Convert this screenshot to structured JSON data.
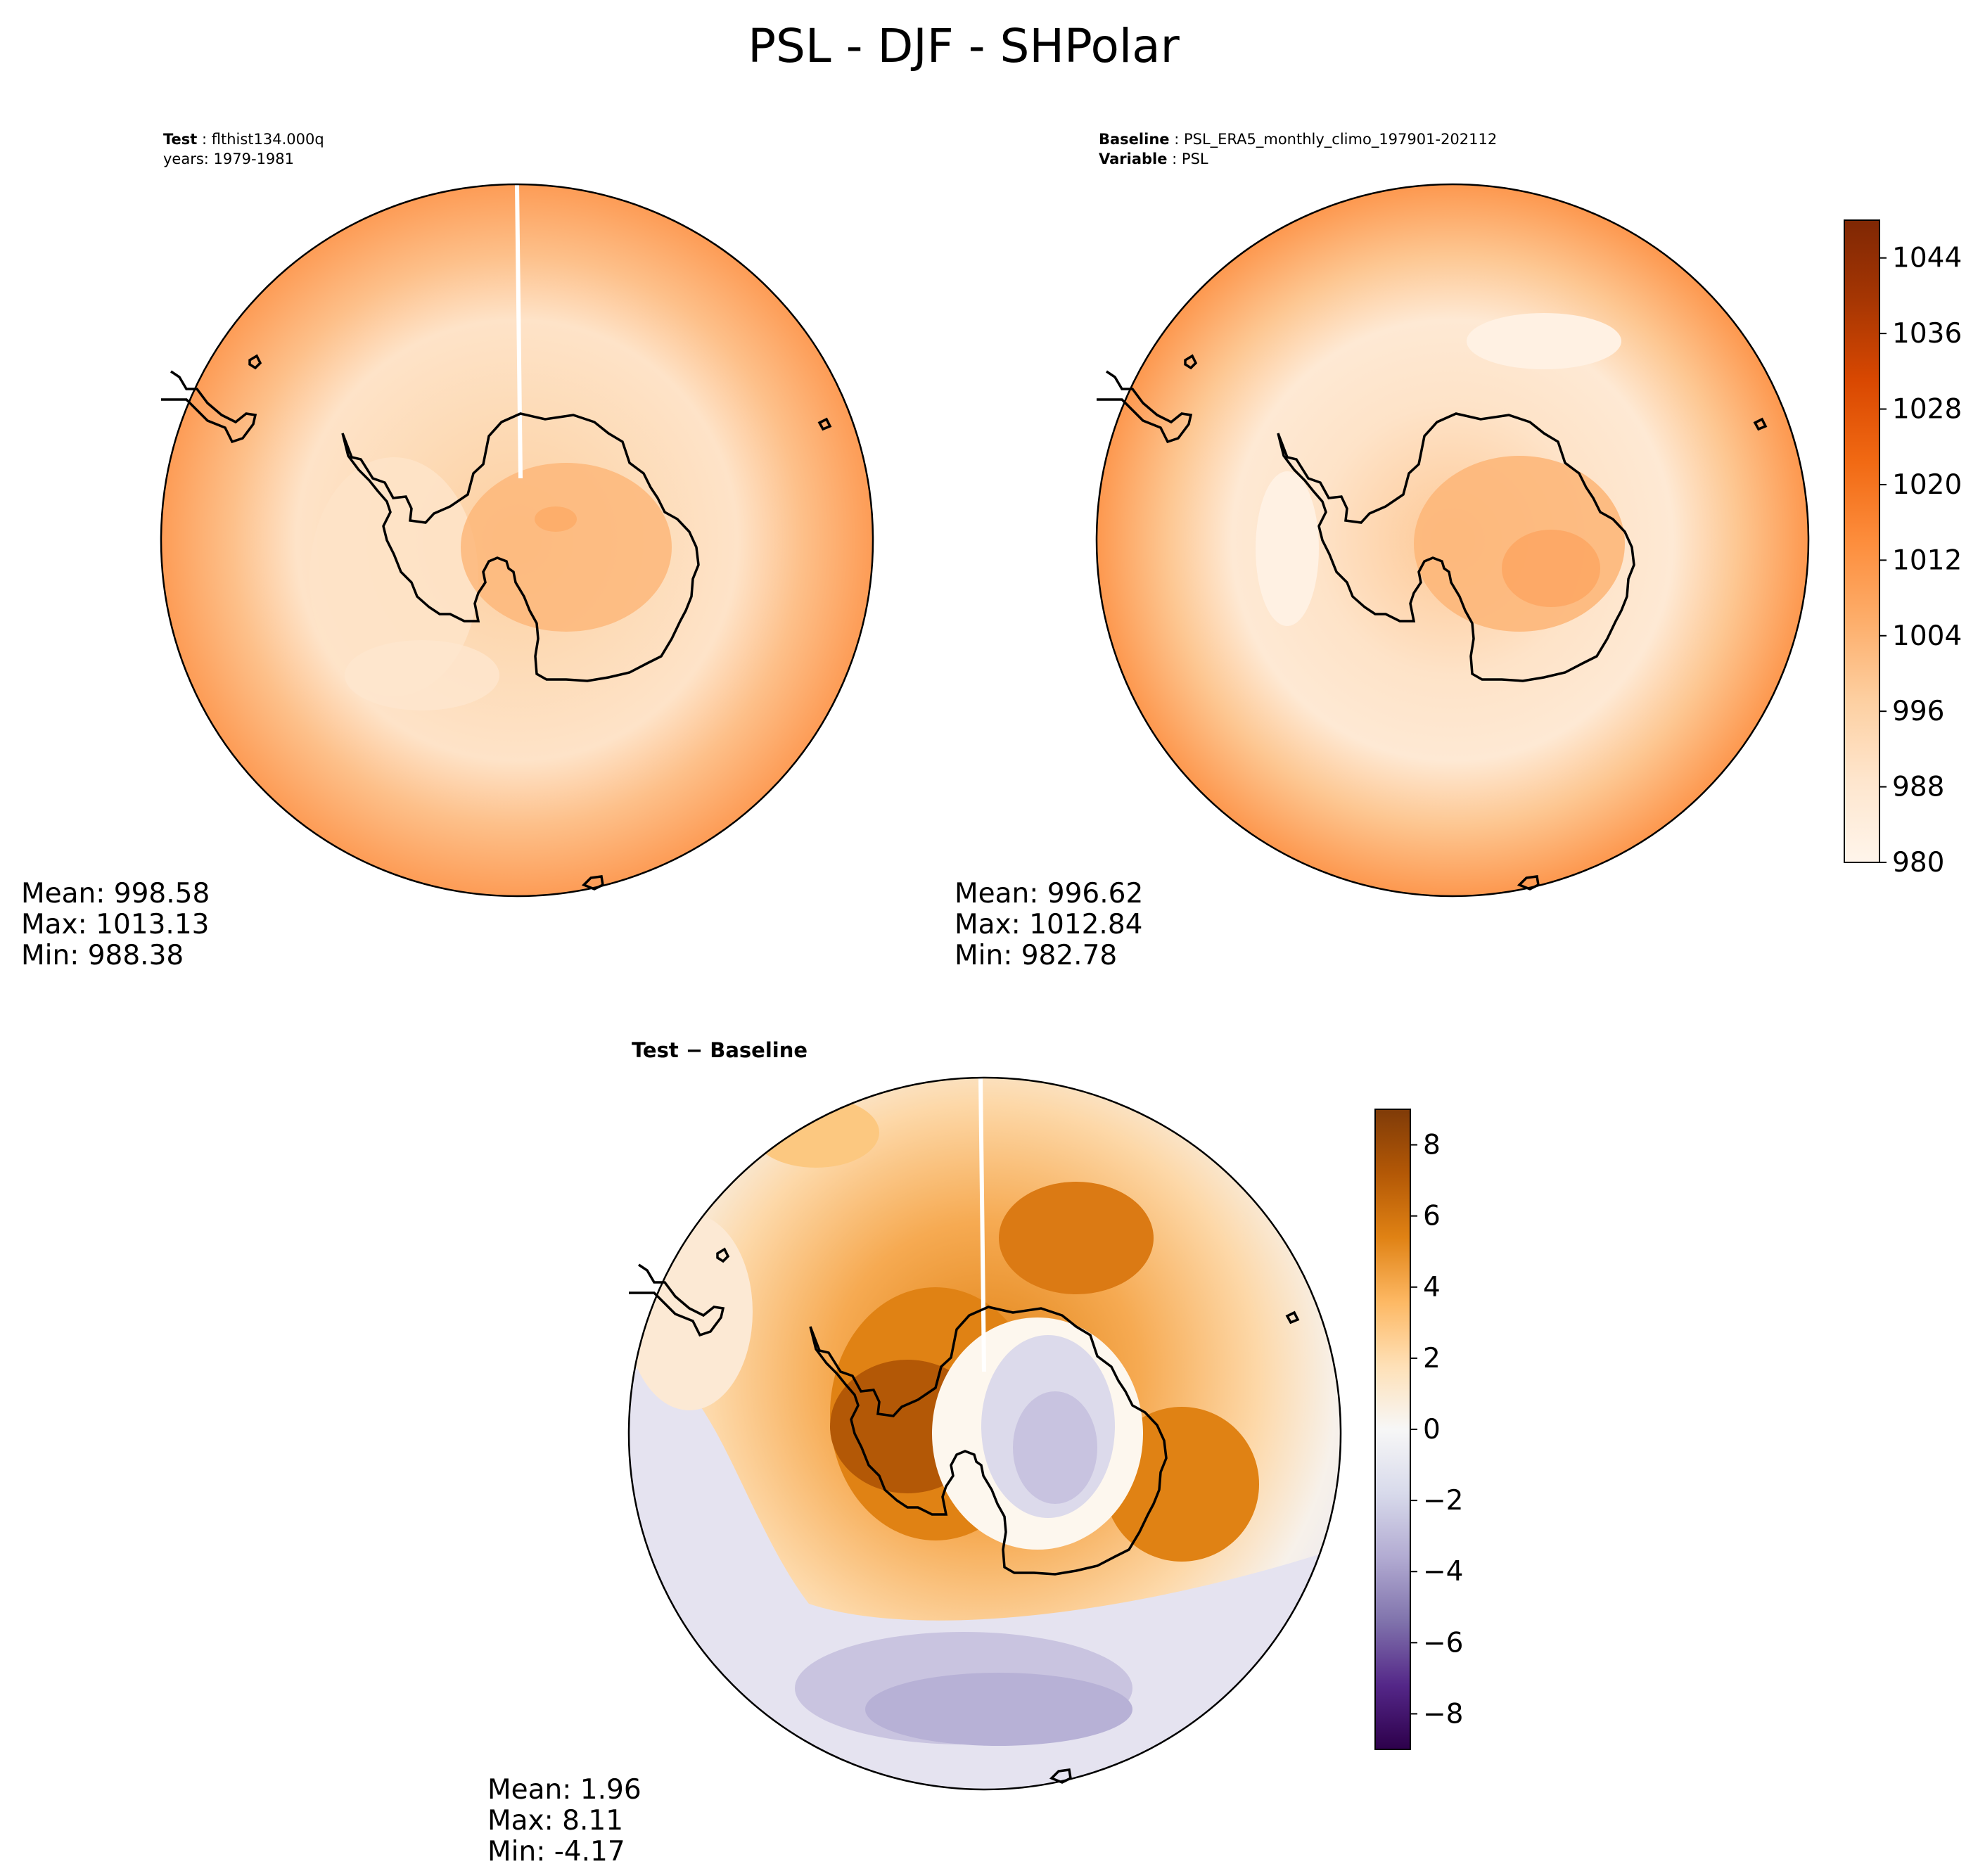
{
  "page": {
    "title": "PSL - DJF - SHPolar"
  },
  "chart_data": [
    {
      "type": "heatmap",
      "panel": "test",
      "header": [
        {
          "key": "Test",
          "value": "flthist134.000q"
        },
        {
          "key": "",
          "value": "years: 1979-1981"
        }
      ],
      "projection": "south-polar-stereographic",
      "stats": {
        "mean": "Mean: 998.58",
        "max": "Max: 1013.13",
        "min": "Min: 988.38"
      },
      "values": {
        "mean": 998.58,
        "max": 1013.13,
        "min": 988.38
      }
    },
    {
      "type": "heatmap",
      "panel": "baseline",
      "header": [
        {
          "key": "Baseline",
          "value": "PSL_ERA5_monthly_climo_197901-202112"
        },
        {
          "key": "Variable",
          "value": "PSL"
        }
      ],
      "projection": "south-polar-stereographic",
      "stats": {
        "mean": "Mean: 996.62",
        "max": "Max: 1012.84",
        "min": "Min: 982.78"
      },
      "values": {
        "mean": 996.62,
        "max": 1012.84,
        "min": 982.78
      },
      "colorbar": {
        "colormap": "Oranges",
        "range": [
          980,
          1048
        ],
        "ticks": [
          "980",
          "988",
          "996",
          "1004",
          "1012",
          "1020",
          "1028",
          "1036",
          "1044"
        ],
        "colors": [
          "#fff5eb",
          "#fee6ce",
          "#fdd0a2",
          "#fdae6b",
          "#fd8d3c",
          "#f16913",
          "#d94801",
          "#a63603",
          "#7f2704"
        ]
      }
    },
    {
      "type": "heatmap",
      "panel": "difference",
      "header_label": "Test − Baseline",
      "projection": "south-polar-stereographic",
      "stats": {
        "mean": "Mean:  1.96",
        "max": "Max:  8.11",
        "min": "Min: -4.17"
      },
      "values": {
        "mean": 1.96,
        "max": 8.11,
        "min": -4.17
      },
      "colorbar": {
        "colormap": "PuOr_r",
        "range": [
          -9,
          9
        ],
        "ticks": [
          "−8",
          "−6",
          "−4",
          "−2",
          "0",
          "2",
          "4",
          "6",
          "8"
        ],
        "tick_values": [
          -8,
          -6,
          -4,
          -2,
          0,
          2,
          4,
          6,
          8
        ],
        "colors": [
          "#2d004b",
          "#542788",
          "#8073ac",
          "#b2abd2",
          "#d8daeb",
          "#f7f7f7",
          "#fee0b6",
          "#fdb863",
          "#e08214",
          "#b35806",
          "#7f3b08"
        ]
      }
    }
  ]
}
